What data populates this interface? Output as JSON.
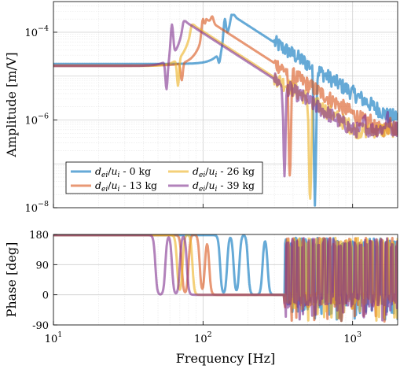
{
  "chart_data": [
    {
      "type": "line",
      "panel": "amplitude",
      "xscale": "log",
      "yscale": "log",
      "xlim": [
        10,
        2000
      ],
      "ylim": [
        1e-08,
        0.0005
      ],
      "ylabel": "Amplitude [m/V]",
      "yticks": [
        {
          "value": 1e-08,
          "base": "10",
          "exp": "−8"
        },
        {
          "value": 1e-06,
          "base": "10",
          "exp": "−6"
        },
        {
          "value": 0.0001,
          "base": "10",
          "exp": "−4"
        }
      ],
      "grid": true,
      "legend_position": "bottom-left",
      "series": [
        {
          "name": "d_ei/u_i - 0 kg",
          "mass": "0 kg",
          "color": "#0072BD",
          "low_level": 1.9e-05,
          "resonances": [
            [
              140,
              0.0002
            ],
            [
              160,
              0.00025
            ],
            [
              260,
              4e-05
            ],
            [
              380,
              1.5e-05
            ],
            [
              650,
              3e-06
            ],
            [
              700,
              8e-06
            ],
            [
              1000,
              3e-06
            ],
            [
              1300,
              2e-06
            ]
          ],
          "antiresonances": [
            [
              128,
              2e-05
            ],
            [
              560,
              1.5e-08
            ]
          ],
          "peak": [
            155,
            0.00025
          ],
          "dip": [
            550,
            1.2e-08
          ],
          "hf_level": 1e-06
        },
        {
          "name": "d_ei/u_i - 13 kg",
          "mass": "13 kg",
          "color": "#D95319",
          "low_level": 1.75e-05,
          "resonances": [
            [
              100,
              0.0002
            ],
            [
              115,
              0.00023
            ],
            [
              420,
              2e-06
            ],
            [
              800,
              1.5e-06
            ],
            [
              1300,
              1e-06
            ],
            [
              1800,
              1e-06
            ]
          ],
          "antiresonances": [
            [
              72,
              8e-06
            ],
            [
              380,
              4e-08
            ]
          ],
          "peak": [
            105,
            0.0002
          ],
          "dip": [
            380,
            4e-08
          ],
          "hf_level": 5e-07
        },
        {
          "name": "d_ei/u_i - 26 kg",
          "mass": "26 kg",
          "color": "#EDB120",
          "low_level": 1.7e-05,
          "resonances": [
            [
              85,
              0.00015
            ],
            [
              450,
              8e-07
            ],
            [
              700,
              6e-07
            ],
            [
              1500,
              5e-07
            ]
          ],
          "antiresonances": [
            [
              68,
              6e-06
            ],
            [
              520,
              1.2e-08
            ]
          ],
          "peak": [
            85,
            0.00015
          ],
          "dip": [
            500,
            1.5e-08
          ],
          "hf_level": 5e-07
        },
        {
          "name": "d_ei/u_i - 39 kg",
          "mass": "39 kg",
          "color": "#7E2F8E",
          "low_level": 1.7e-05,
          "resonances": [
            [
              62,
              0.00015
            ],
            [
              75,
              0.00018
            ],
            [
              400,
              4e-07
            ],
            [
              700,
              5e-07
            ],
            [
              1200,
              1e-06
            ],
            [
              1700,
              1.2e-06
            ]
          ],
          "antiresonances": [
            [
              57,
              5e-06
            ],
            [
              350,
              6e-08
            ]
          ],
          "peak": [
            75,
            0.00018
          ],
          "dip": [
            350,
            6e-08
          ],
          "hf_level": 5e-07
        }
      ]
    },
    {
      "type": "line",
      "panel": "phase",
      "xscale": "log",
      "xlim": [
        10,
        2000
      ],
      "ylim": [
        -90,
        180
      ],
      "ylabel": "Phase [deg]",
      "xlabel": "Frequency [Hz]",
      "yticks": [
        -90,
        0,
        90,
        180
      ],
      "xticks": [
        {
          "value": 10,
          "base": "10",
          "exp": "1"
        },
        {
          "value": 100,
          "base": "10",
          "exp": "2"
        },
        {
          "value": 1000,
          "base": "10",
          "exp": "3"
        }
      ],
      "grid": true,
      "series": [
        {
          "name": "d_ei/u_i - 0 kg",
          "color": "#0072BD",
          "transitions": [
            [
              130,
              180,
              0
            ],
            [
              145,
              0,
              180
            ],
            [
              160,
              180,
              0
            ],
            [
              175,
              0,
              180
            ],
            [
              200,
              180,
              0
            ],
            [
              250,
              0,
              180
            ],
            [
              270,
              180,
              0
            ]
          ],
          "hf_level": -10
        },
        {
          "name": "d_ei/u_i - 13 kg",
          "color": "#D95319",
          "transitions": [
            [
              72,
              180,
              0
            ],
            [
              80,
              0,
              180
            ],
            [
              95,
              180,
              0
            ],
            [
              103,
              0,
              180
            ],
            [
              110,
              180,
              0
            ]
          ],
          "hf_level": -10
        },
        {
          "name": "d_ei/u_i - 26 kg",
          "color": "#EDB120",
          "transitions": [
            [
              67,
              180,
              0
            ],
            [
              73,
              0,
              180
            ],
            [
              85,
              180,
              0
            ]
          ],
          "hf_level": -10
        },
        {
          "name": "d_ei/u_i - 39 kg",
          "color": "#7E2F8E",
          "transitions": [
            [
              48,
              180,
              0
            ],
            [
              56,
              0,
              180
            ],
            [
              62,
              180,
              0
            ],
            [
              70,
              0,
              180
            ],
            [
              78,
              180,
              0
            ]
          ],
          "hf_level": -15
        }
      ]
    }
  ]
}
